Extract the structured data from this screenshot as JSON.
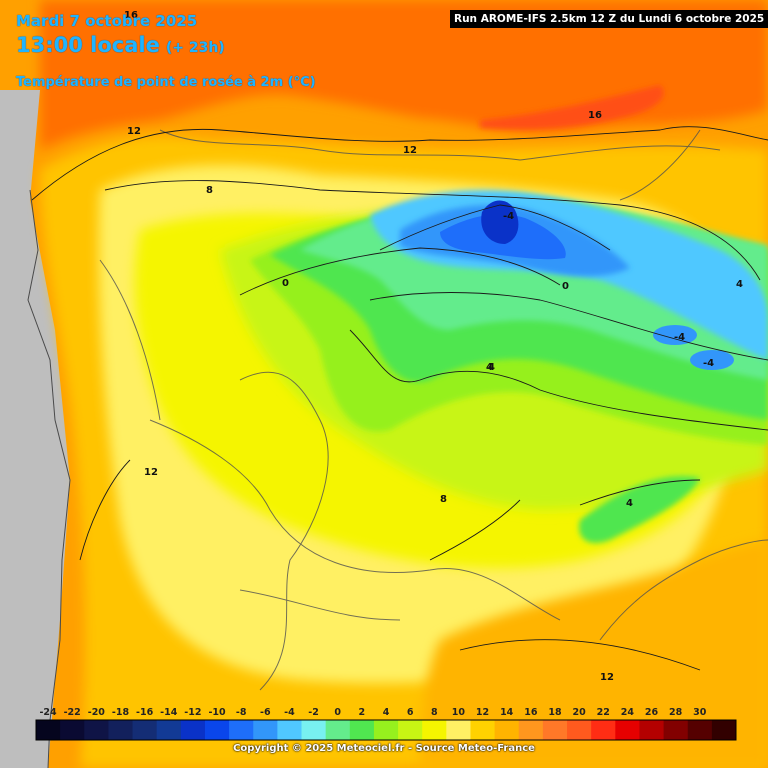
{
  "header": {
    "date": "Mardi 7 octobre 2025",
    "time": "13:00 locale",
    "lead": "(+ 23h)",
    "variable": "Température de point de rosée à 2m (°C)",
    "run": "Run AROME-IFS 2.5km 12 Z du Lundi 6 octobre 2025"
  },
  "contour_labels": [
    "16",
    "12",
    "8",
    "12",
    "16",
    "-4",
    "0",
    "0",
    "4",
    "-4",
    "-4",
    "4",
    "12",
    "8",
    "4",
    "12",
    "4"
  ],
  "legend": {
    "ticks": [
      "-24",
      "-22",
      "-20",
      "-18",
      "-16",
      "-14",
      "-12",
      "-10",
      "-8",
      "-6",
      "-4",
      "-2",
      "0",
      "2",
      "4",
      "6",
      "8",
      "10",
      "12",
      "14",
      "16",
      "18",
      "20",
      "22",
      "24",
      "26",
      "28",
      "30"
    ],
    "colors": [
      "#05051e",
      "#0a0a32",
      "#0f1446",
      "#12205c",
      "#142d75",
      "#123a95",
      "#0a32c8",
      "#0a46eb",
      "#1e6efa",
      "#3296fa",
      "#50c8ff",
      "#78f0f0",
      "#64ec8c",
      "#50e650",
      "#96f01e",
      "#c8f514",
      "#f5f500",
      "#fff064",
      "#ffd200",
      "#ffb400",
      "#ff961e",
      "#ff7828",
      "#ff5a1e",
      "#ff2d14",
      "#e60000",
      "#b40000",
      "#820000",
      "#550000",
      "#320000"
    ]
  },
  "copyright": "Copyright © 2025 Meteociel.fr - Source Meteo-France"
}
